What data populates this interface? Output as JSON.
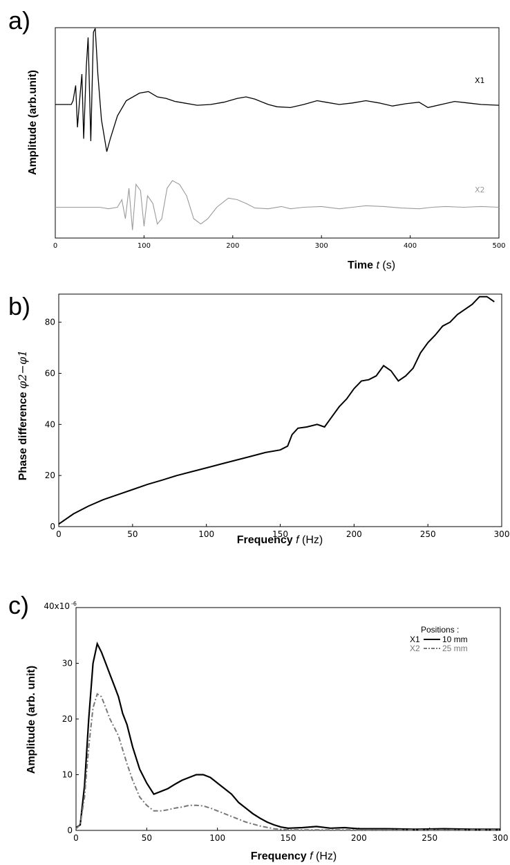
{
  "panels": {
    "a": "a)",
    "b": "b)",
    "c": "c)"
  },
  "chart_data": [
    {
      "id": "a",
      "type": "line",
      "xlabel_word": "Time",
      "xlabel_var": "t",
      "xlabel_unit": "(s)",
      "ylabel": "Amplitude (arb.unit)",
      "xlim": [
        0,
        500
      ],
      "xticks": [
        "0",
        "100",
        "200",
        "300",
        "400",
        "500"
      ],
      "series": [
        {
          "name": "X1",
          "color": "#000000",
          "baseline": 0.0,
          "points": [
            [
              0,
              0
            ],
            [
              18,
              0
            ],
            [
              20,
              0.05
            ],
            [
              23,
              0.25
            ],
            [
              25,
              -0.3
            ],
            [
              27,
              0
            ],
            [
              30,
              0.4
            ],
            [
              32,
              -0.45
            ],
            [
              35,
              0.5
            ],
            [
              37,
              0.88
            ],
            [
              40,
              -0.48
            ],
            [
              43,
              0.95
            ],
            [
              45,
              1.0
            ],
            [
              48,
              0.4
            ],
            [
              52,
              -0.2
            ],
            [
              58,
              -0.62
            ],
            [
              62,
              -0.45
            ],
            [
              70,
              -0.15
            ],
            [
              80,
              0.05
            ],
            [
              95,
              0.15
            ],
            [
              105,
              0.17
            ],
            [
              115,
              0.1
            ],
            [
              125,
              0.08
            ],
            [
              135,
              0.04
            ],
            [
              145,
              0.02
            ],
            [
              160,
              -0.01
            ],
            [
              175,
              0.0
            ],
            [
              190,
              0.03
            ],
            [
              205,
              0.08
            ],
            [
              215,
              0.1
            ],
            [
              225,
              0.07
            ],
            [
              240,
              0.0
            ],
            [
              250,
              -0.03
            ],
            [
              265,
              -0.04
            ],
            [
              280,
              0.0
            ],
            [
              295,
              0.05
            ],
            [
              305,
              0.03
            ],
            [
              320,
              0.0
            ],
            [
              335,
              0.02
            ],
            [
              350,
              0.05
            ],
            [
              365,
              0.02
            ],
            [
              380,
              -0.02
            ],
            [
              395,
              0.01
            ],
            [
              410,
              0.03
            ],
            [
              420,
              -0.04
            ],
            [
              435,
              0.0
            ],
            [
              450,
              0.04
            ],
            [
              465,
              0.02
            ],
            [
              480,
              0.0
            ],
            [
              500,
              -0.01
            ]
          ]
        },
        {
          "name": "X2",
          "color": "#9a9a9a",
          "baseline": -1.35,
          "points": [
            [
              0,
              0
            ],
            [
              50,
              0
            ],
            [
              60,
              -0.02
            ],
            [
              70,
              0.0
            ],
            [
              75,
              0.1
            ],
            [
              79,
              -0.15
            ],
            [
              83,
              0.25
            ],
            [
              87,
              -0.3
            ],
            [
              91,
              0.3
            ],
            [
              96,
              0.22
            ],
            [
              100,
              -0.25
            ],
            [
              104,
              0.15
            ],
            [
              110,
              0.05
            ],
            [
              115,
              -0.22
            ],
            [
              120,
              -0.15
            ],
            [
              126,
              0.25
            ],
            [
              132,
              0.35
            ],
            [
              140,
              0.3
            ],
            [
              148,
              0.15
            ],
            [
              156,
              -0.15
            ],
            [
              164,
              -0.22
            ],
            [
              172,
              -0.15
            ],
            [
              182,
              0.0
            ],
            [
              195,
              0.12
            ],
            [
              205,
              0.1
            ],
            [
              215,
              0.05
            ],
            [
              225,
              -0.01
            ],
            [
              240,
              -0.02
            ],
            [
              255,
              0.01
            ],
            [
              265,
              -0.02
            ],
            [
              280,
              0.0
            ],
            [
              300,
              0.01
            ],
            [
              320,
              -0.02
            ],
            [
              335,
              0.0
            ],
            [
              350,
              0.02
            ],
            [
              370,
              0.01
            ],
            [
              390,
              -0.01
            ],
            [
              410,
              -0.02
            ],
            [
              425,
              0.0
            ],
            [
              440,
              0.01
            ],
            [
              460,
              0.0
            ],
            [
              480,
              0.01
            ],
            [
              500,
              0.0
            ]
          ]
        }
      ]
    },
    {
      "id": "b",
      "type": "line",
      "xlabel_word": "Frequency",
      "xlabel_var": "f",
      "xlabel_unit": "(Hz)",
      "ylabel_word": "Phase difference",
      "ylabel_sym": "φ2−φ1",
      "xlim": [
        0,
        300
      ],
      "ylim": [
        0,
        91
      ],
      "xticks": [
        "0",
        "50",
        "100",
        "150",
        "200",
        "250",
        "300"
      ],
      "yticks": [
        "0",
        "20",
        "40",
        "60",
        "80"
      ],
      "series": [
        {
          "name": "",
          "color": "#000000",
          "points": [
            [
              0,
              1
            ],
            [
              10,
              5
            ],
            [
              20,
              8
            ],
            [
              30,
              10.5
            ],
            [
              40,
              12.5
            ],
            [
              50,
              14.5
            ],
            [
              60,
              16.5
            ],
            [
              70,
              18.2
            ],
            [
              80,
              20
            ],
            [
              90,
              21.5
            ],
            [
              100,
              23
            ],
            [
              110,
              24.5
            ],
            [
              120,
              26
            ],
            [
              130,
              27.5
            ],
            [
              140,
              29
            ],
            [
              150,
              30
            ],
            [
              155,
              31.5
            ],
            [
              158,
              36
            ],
            [
              162,
              38.5
            ],
            [
              168,
              39
            ],
            [
              175,
              40
            ],
            [
              180,
              39
            ],
            [
              185,
              43
            ],
            [
              190,
              47
            ],
            [
              195,
              50
            ],
            [
              200,
              54
            ],
            [
              205,
              57
            ],
            [
              210,
              57.5
            ],
            [
              215,
              59
            ],
            [
              220,
              63
            ],
            [
              225,
              61
            ],
            [
              230,
              57
            ],
            [
              235,
              59
            ],
            [
              240,
              62
            ],
            [
              245,
              68
            ],
            [
              250,
              72
            ],
            [
              255,
              75
            ],
            [
              260,
              78.5
            ],
            [
              265,
              80
            ],
            [
              270,
              83
            ],
            [
              275,
              85
            ],
            [
              280,
              87
            ],
            [
              285,
              90
            ],
            [
              290,
              90
            ],
            [
              295,
              88
            ]
          ]
        }
      ]
    },
    {
      "id": "c",
      "type": "line",
      "xlabel_word": "Frequency",
      "xlabel_var": "f",
      "xlabel_unit": "(Hz)",
      "ylabel": "Amplitude (arb. unit)",
      "xlim": [
        0,
        300
      ],
      "ylim": [
        0,
        40
      ],
      "xticks": [
        "0",
        "50",
        "100",
        "150",
        "200",
        "250",
        "300"
      ],
      "yticks": [
        "0",
        "10",
        "20",
        "30",
        "40x10"
      ],
      "ytick_top_exp": "-6",
      "legend_title": "Positions :",
      "legend_placement": "top-right",
      "series": [
        {
          "name": "X1",
          "label": "10 mm",
          "color": "#000000",
          "dash": "",
          "points": [
            [
              0,
              0.5
            ],
            [
              3,
              1
            ],
            [
              6,
              8
            ],
            [
              9,
              20
            ],
            [
              12,
              30
            ],
            [
              15,
              33.5
            ],
            [
              18,
              32
            ],
            [
              21,
              30
            ],
            [
              24,
              28
            ],
            [
              27,
              26
            ],
            [
              30,
              24
            ],
            [
              33,
              21
            ],
            [
              36,
              19
            ],
            [
              40,
              15
            ],
            [
              45,
              11
            ],
            [
              50,
              8.5
            ],
            [
              55,
              6.5
            ],
            [
              60,
              7
            ],
            [
              65,
              7.5
            ],
            [
              70,
              8.3
            ],
            [
              75,
              9
            ],
            [
              80,
              9.5
            ],
            [
              85,
              10
            ],
            [
              90,
              10
            ],
            [
              95,
              9.5
            ],
            [
              100,
              8.5
            ],
            [
              105,
              7.5
            ],
            [
              110,
              6.5
            ],
            [
              115,
              5
            ],
            [
              120,
              4
            ],
            [
              125,
              3
            ],
            [
              130,
              2.2
            ],
            [
              135,
              1.5
            ],
            [
              140,
              1
            ],
            [
              145,
              0.6
            ],
            [
              150,
              0.4
            ],
            [
              160,
              0.5
            ],
            [
              170,
              0.7
            ],
            [
              180,
              0.4
            ],
            [
              190,
              0.5
            ],
            [
              200,
              0.3
            ],
            [
              220,
              0.3
            ],
            [
              240,
              0.2
            ],
            [
              260,
              0.3
            ],
            [
              280,
              0.2
            ],
            [
              300,
              0.2
            ]
          ]
        },
        {
          "name": "X2",
          "label": "25 mm",
          "color": "#777777",
          "dash": "7 3 2 3",
          "points": [
            [
              0,
              0.3
            ],
            [
              3,
              1
            ],
            [
              6,
              6
            ],
            [
              9,
              15
            ],
            [
              12,
              22
            ],
            [
              15,
              24.5
            ],
            [
              18,
              24
            ],
            [
              21,
              22
            ],
            [
              24,
              20
            ],
            [
              27,
              18.5
            ],
            [
              30,
              17
            ],
            [
              33,
              14.5
            ],
            [
              36,
              12
            ],
            [
              40,
              9
            ],
            [
              45,
              6
            ],
            [
              50,
              4.5
            ],
            [
              55,
              3.5
            ],
            [
              60,
              3.5
            ],
            [
              65,
              3.7
            ],
            [
              70,
              4
            ],
            [
              75,
              4.2
            ],
            [
              80,
              4.5
            ],
            [
              85,
              4.5
            ],
            [
              90,
              4.4
            ],
            [
              95,
              4
            ],
            [
              100,
              3.5
            ],
            [
              105,
              3
            ],
            [
              110,
              2.5
            ],
            [
              115,
              2
            ],
            [
              120,
              1.5
            ],
            [
              130,
              0.8
            ],
            [
              140,
              0.3
            ],
            [
              150,
              0.1
            ],
            [
              170,
              0.1
            ],
            [
              200,
              0.1
            ],
            [
              250,
              0.1
            ],
            [
              300,
              0.1
            ]
          ]
        }
      ]
    }
  ]
}
